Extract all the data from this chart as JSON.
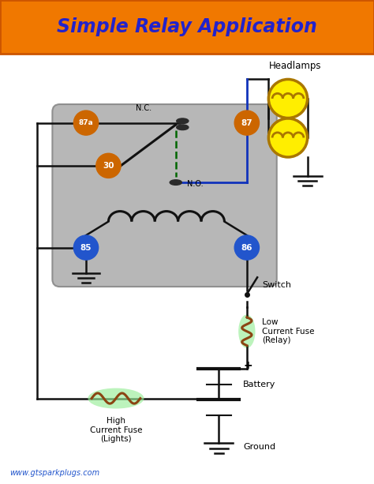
{
  "title": "Simple Relay Application",
  "title_color": "#2222cc",
  "title_bg": "#f07800",
  "bg_color": "#ffffff",
  "website": "www.gtsparkplugs.com",
  "relay_box_color": "#b0b0b0",
  "pin_orange": "#cc6600",
  "pin_blue": "#2255cc",
  "headlamp_fill": "#ffee00",
  "headlamp_ring": "#aa7700",
  "fuse_green": "#99ee99",
  "wire_black": "#111111",
  "wire_blue": "#1133bb",
  "coil_color": "#111111",
  "brown": "#8B4513",
  "green_dash": "#006600",
  "nc_label": "N.C.",
  "no_label": "N.O.",
  "label_headlamps": "Headlamps",
  "label_switch": "Switch",
  "label_low_fuse": "Low\nCurrent Fuse\n(Relay)",
  "label_high_fuse": "High\nCurrent Fuse\n(Lights)",
  "label_battery": "Battery",
  "label_ground": "Ground",
  "label_website": "www.gtsparkplugs.com",
  "label_plus": "+"
}
